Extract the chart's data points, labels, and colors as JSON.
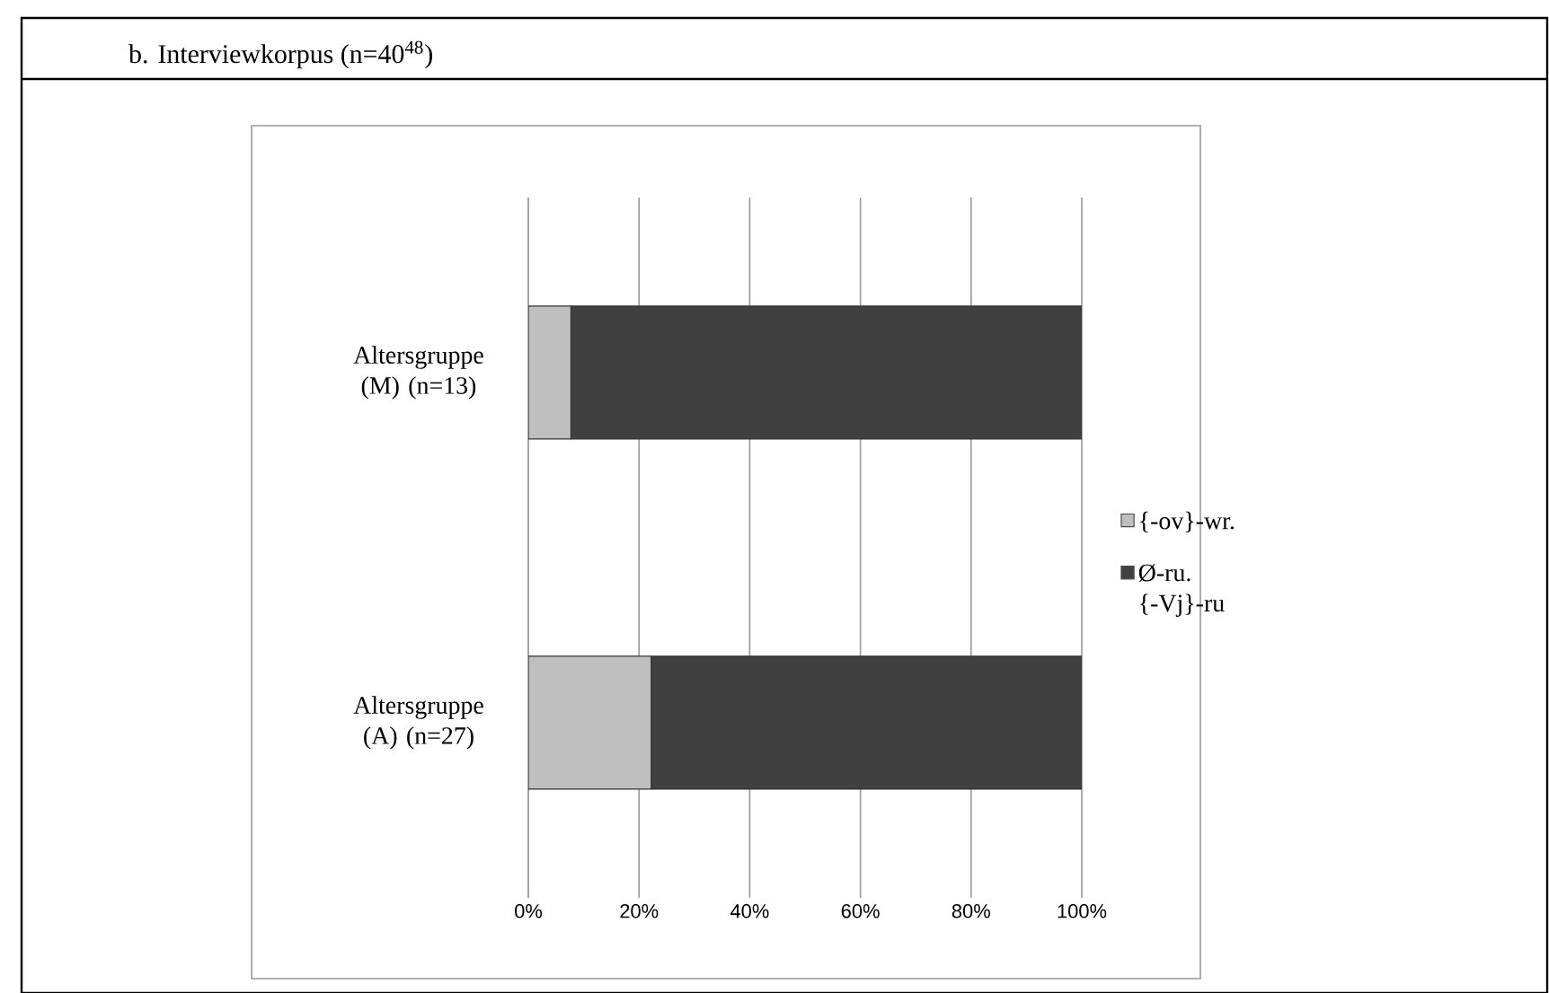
{
  "chart_data": {
    "type": "bar",
    "orientation": "horizontal",
    "stacked": true,
    "title": "b.   Interviewkorpus (n=40$^{48}$)",
    "categories": [
      "Altersgruppe (M) (n=13)",
      "Altersgruppe (A) (n=27)"
    ],
    "series": [
      {
        "name": "{-ov}-wr.",
        "color": "#bfbfbf",
        "values": [
          7.7,
          22.2
        ]
      },
      {
        "name": "Ø-ru. {-Vj}-ru",
        "color": "#404040",
        "values": [
          92.3,
          77.8
        ]
      }
    ],
    "xlim": [
      0,
      100
    ],
    "xticks": [
      {
        "value": 0,
        "label": "0%"
      },
      {
        "value": 20,
        "label": "20%"
      },
      {
        "value": 40,
        "label": "40%"
      },
      {
        "value": 60,
        "label": "60%"
      },
      {
        "value": 80,
        "label": "80%"
      },
      {
        "value": 100,
        "label": "100%"
      }
    ],
    "grid": "x",
    "legend": "right"
  }
}
